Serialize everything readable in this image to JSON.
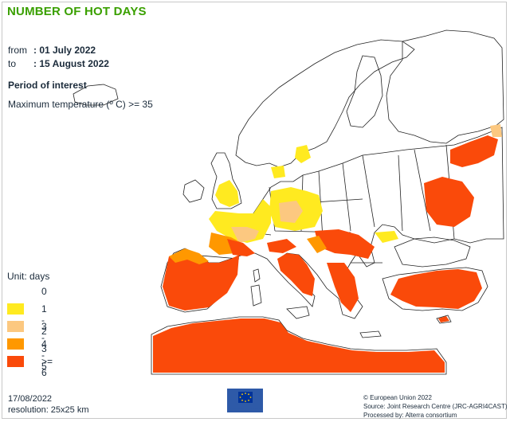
{
  "title": "NUMBER OF HOT DAYS",
  "period": {
    "from_label": "from",
    "from_value": ": 01 July 2022",
    "to_label": "to",
    "to_value": ": 15 August 2022"
  },
  "period_of_interest_label": "Period of interest",
  "criterion": "Maximum temperature (º C) >= 35",
  "legend": {
    "unit_label": "Unit:  days",
    "items": [
      {
        "label": "0",
        "color": "#ffffff"
      },
      {
        "label": "1 - 2",
        "color": "#ffea20"
      },
      {
        "label": "3 - 3",
        "color": "#fcc880"
      },
      {
        "label": "4 - 5",
        "color": "#ff9800"
      },
      {
        "label": ">= 6",
        "color": "#fa4a0a"
      }
    ]
  },
  "footer": {
    "date": "17/08/2022",
    "resolution": "resolution:  25x25 km",
    "copyright": "© European Union 2022",
    "source": "Source: Joint Research Centre (JRC-AGRI4CAST)",
    "processed": "Processed by: Alterra consortium"
  },
  "logo": {
    "alt_text": "European Commission"
  }
}
